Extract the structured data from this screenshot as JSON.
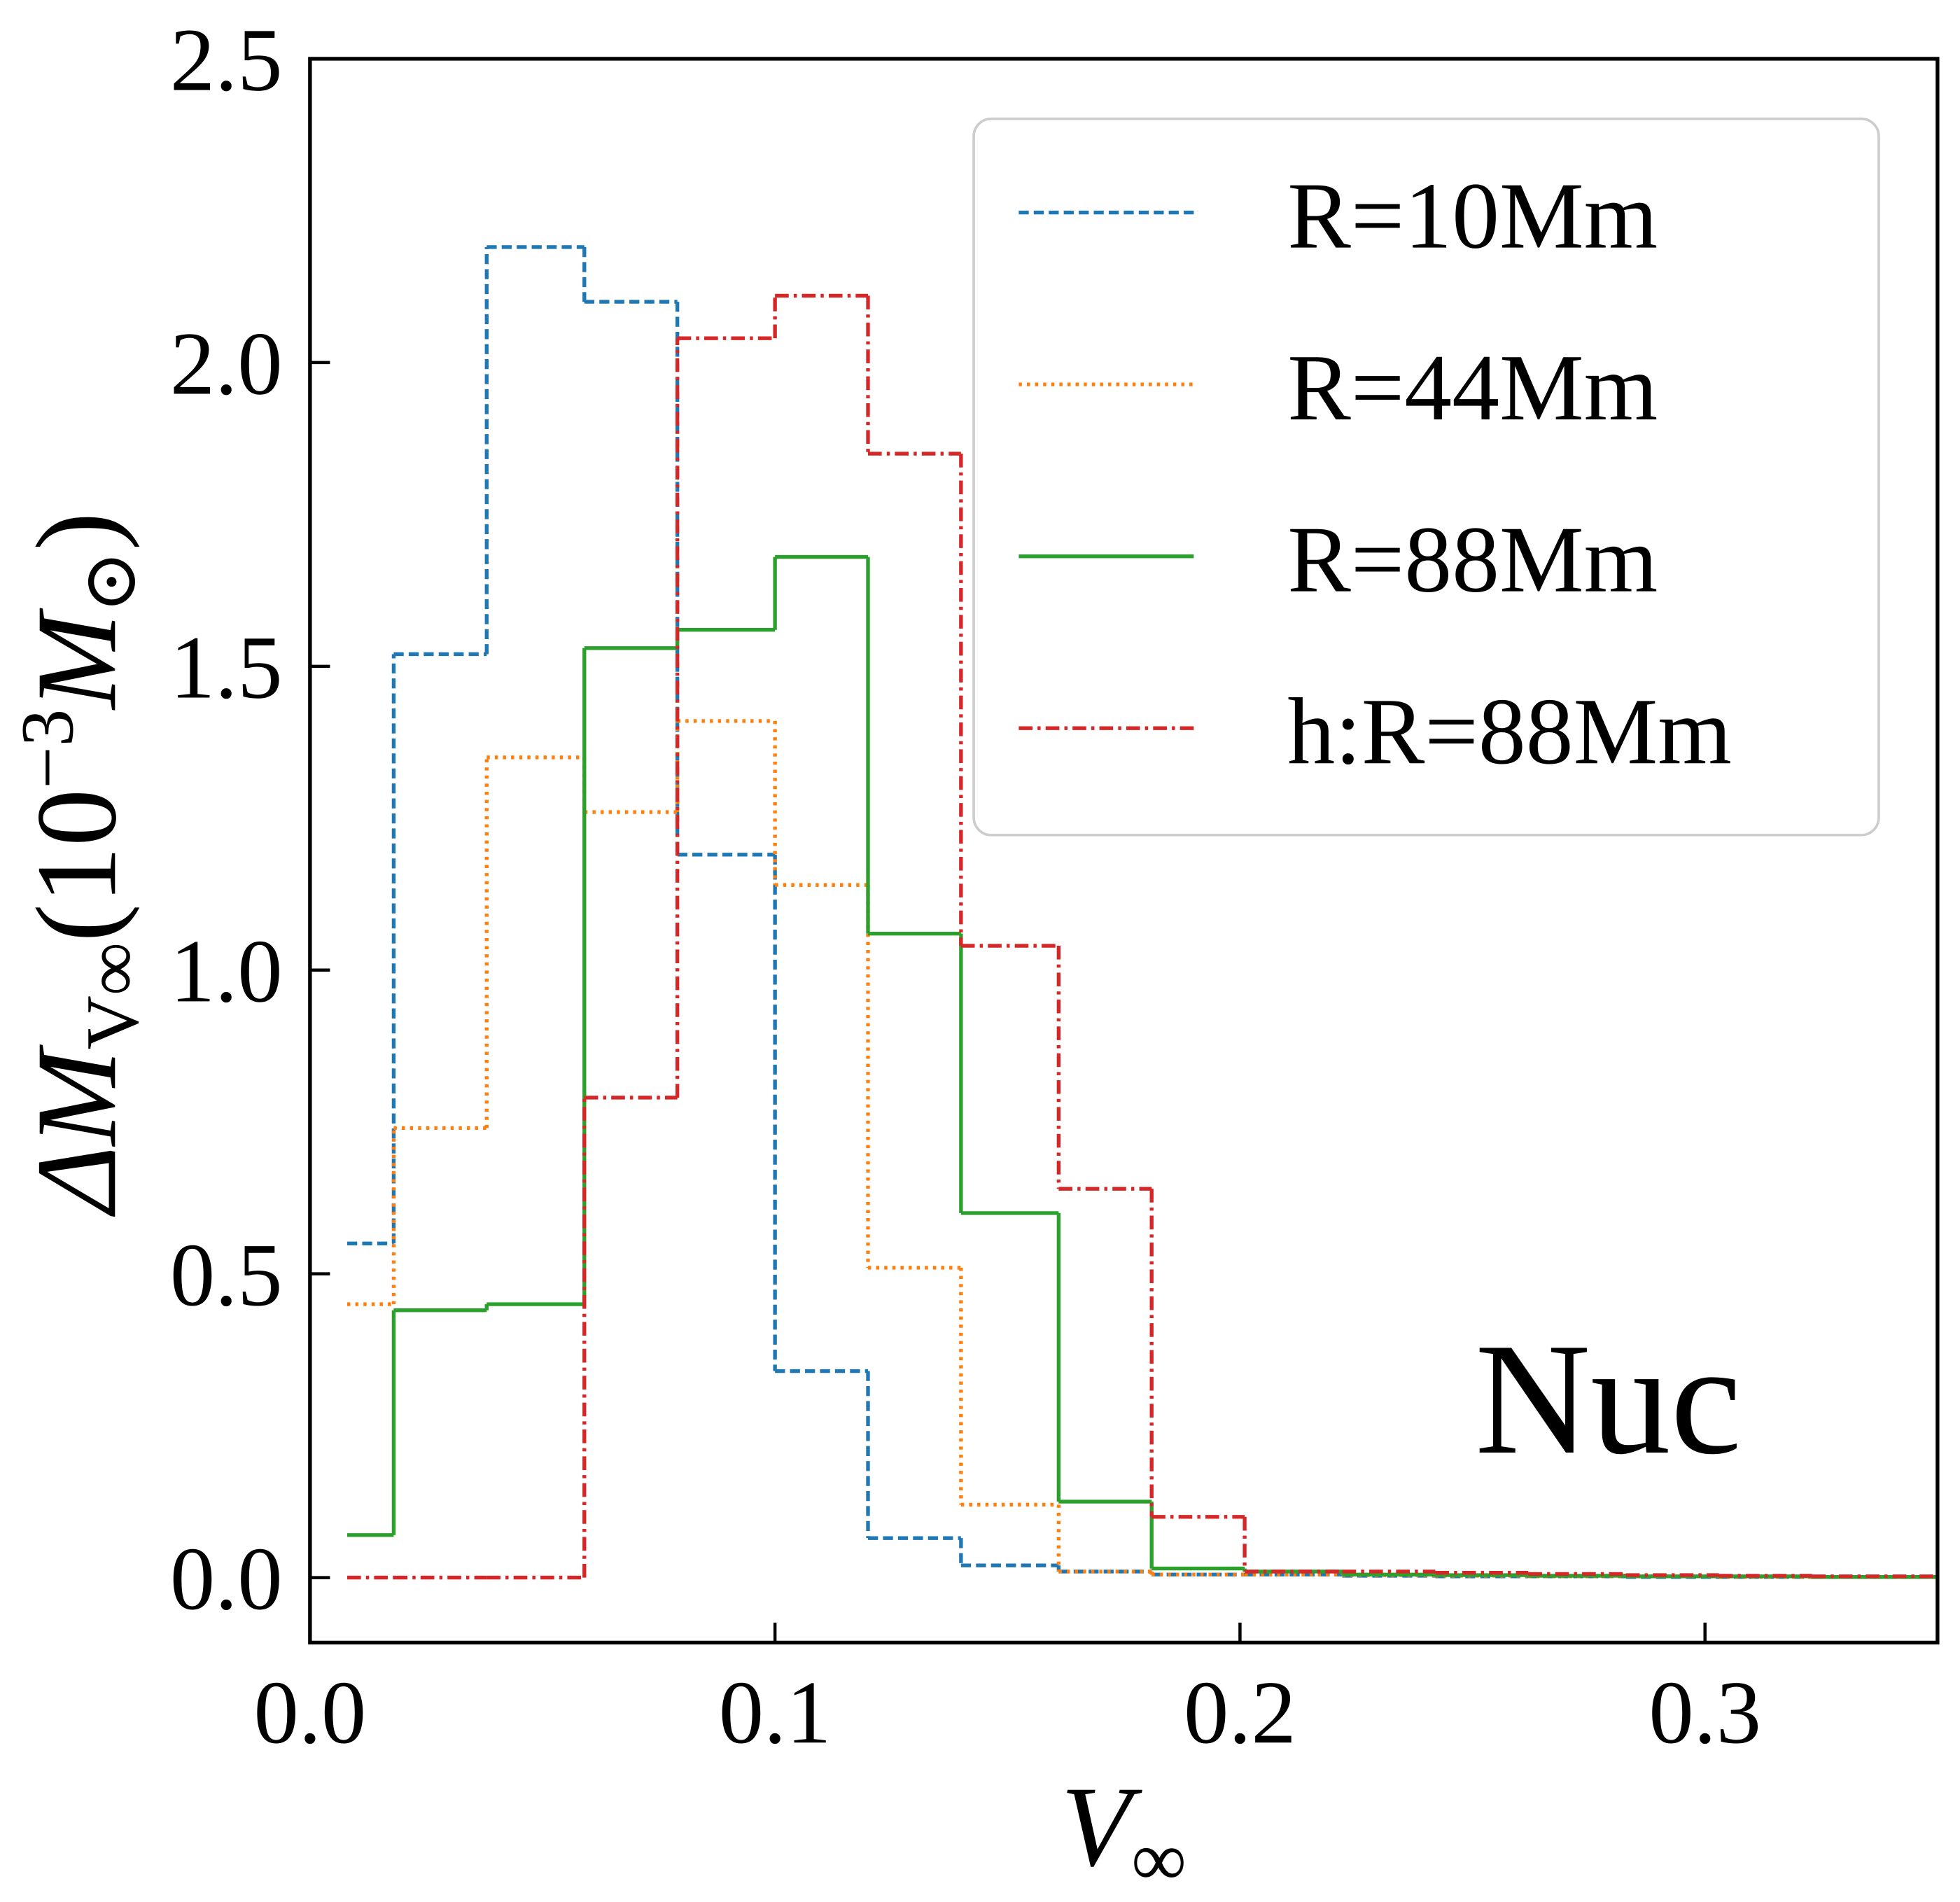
{
  "chart_data": {
    "type": "histogram",
    "x_label": {
      "main": "V",
      "sub": "∞"
    },
    "y_label": {
      "main": "ΔM",
      "sub": "V∞",
      "open": "(10",
      "sup": "−3",
      "unit": "M",
      "unit_sub": "⊙",
      "close": ")"
    },
    "annotation": "Nuc",
    "bins": [
      0.008,
      0.018,
      0.038,
      0.059,
      0.079,
      0.1,
      0.12,
      0.14,
      0.161,
      0.181,
      0.201,
      0.222,
      0.242,
      0.262,
      0.283,
      0.303,
      0.323,
      0.35
    ],
    "series": [
      {
        "name": "R=10Mm",
        "color": "#1f77b4",
        "dash": "8,4",
        "values": [
          0.55,
          1.52,
          2.19,
          2.1,
          1.19,
          0.34,
          0.065,
          0.02,
          0.01,
          0.005,
          0.005,
          0.003,
          0.002,
          0.002,
          0.001,
          0.001,
          0.001
        ]
      },
      {
        "name": "R=44Mm",
        "color": "#ff7f0e",
        "dash": "2.5,4",
        "values": [
          0.45,
          0.74,
          1.35,
          1.26,
          1.41,
          1.14,
          0.51,
          0.12,
          0.01,
          0.005,
          0.005,
          0.004,
          0.003,
          0.002,
          0.002,
          0.001,
          0.001
        ]
      },
      {
        "name": "R=88Mm",
        "color": "#2ca02c",
        "dash": "none",
        "values": [
          0.07,
          0.44,
          0.45,
          1.53,
          1.56,
          1.68,
          1.06,
          0.6,
          0.125,
          0.015,
          0.01,
          0.005,
          0.004,
          0.003,
          0.002,
          0.002,
          0.001
        ]
      },
      {
        "name": "h:R=88Mm",
        "color": "#d62728",
        "dash": "11,4,2.5,4",
        "values": [
          0,
          0,
          0,
          0.79,
          2.04,
          2.11,
          1.85,
          1.04,
          0.64,
          0.1,
          0.01,
          0.01,
          0.008,
          0.006,
          0.004,
          0.003,
          0.002
        ]
      }
    ],
    "xlim": [
      0,
      0.35
    ],
    "ylim": [
      -0.107,
      2.5
    ],
    "xticks": [
      {
        "value": 0,
        "label": "0.0"
      },
      0.1,
      0.2,
      0.3
    ],
    "yticks": [
      {
        "value": 0,
        "label": "0.0"
      },
      0.5,
      {
        "value": 1,
        "label": "1.0"
      },
      1.5,
      {
        "value": 2,
        "label": "2.0"
      },
      2.5
    ],
    "tick_direction": "in",
    "legend": "upper right",
    "grid": false
  }
}
